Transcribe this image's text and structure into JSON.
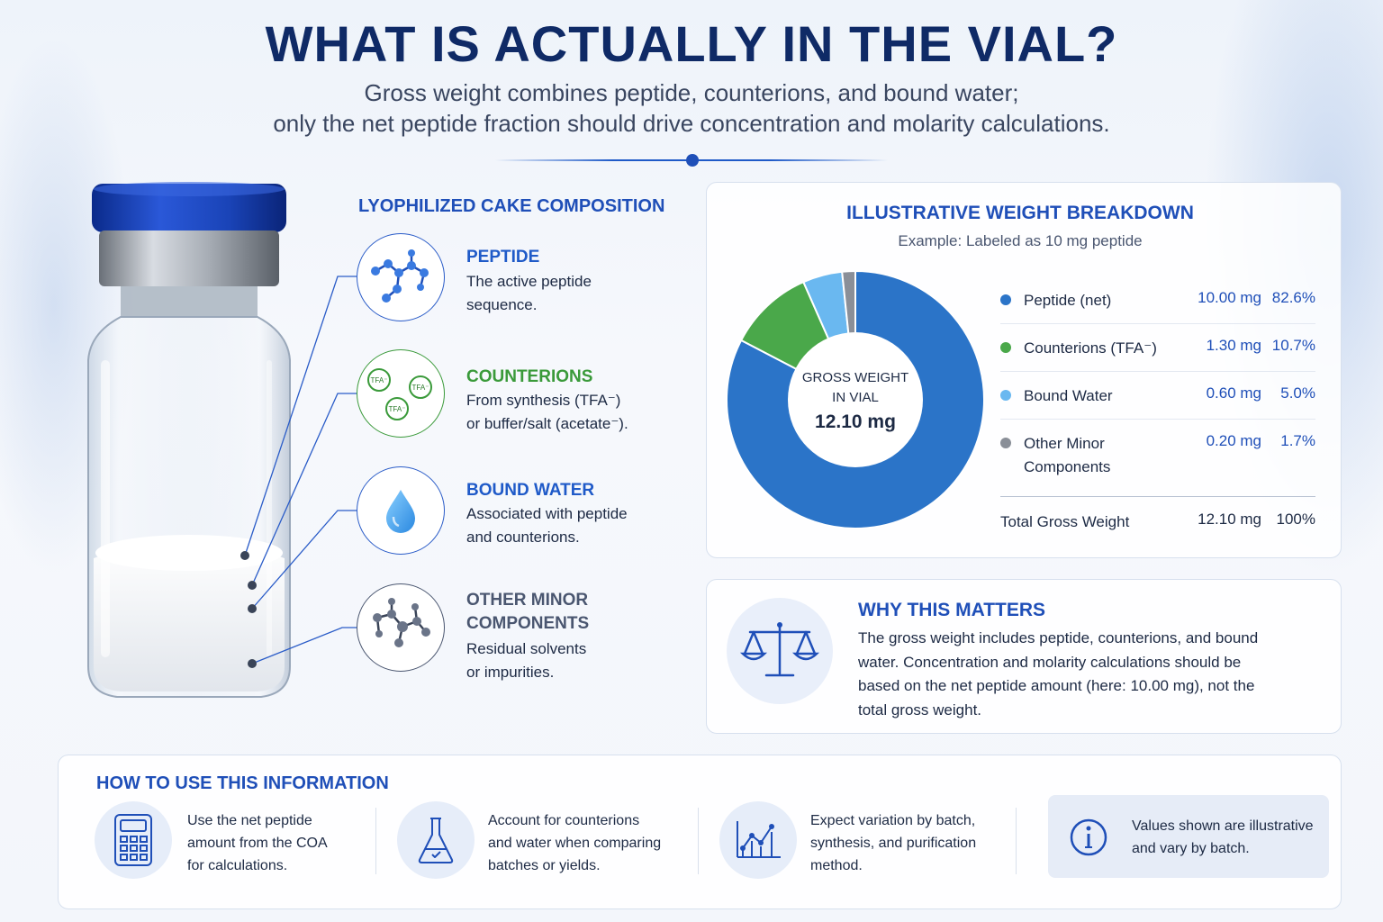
{
  "header": {
    "title": "WHAT IS ACTUALLY IN THE VIAL?",
    "subtitle_line1": "Gross weight combines peptide, counterions, and bound water;",
    "subtitle_line2": "only the net peptide fraction should drive concentration and molarity calculations."
  },
  "composition": {
    "title": "LYOPHILIZED CAKE COMPOSITION",
    "items": [
      {
        "head": "PEPTIDE",
        "line1": "The active peptide",
        "line2": "sequence.",
        "color": "#1f5ac8",
        "icon": "molecule-icon"
      },
      {
        "head": "COUNTERIONS",
        "line1": "From synthesis (TFA⁻)",
        "line2": "or buffer/salt (acetate⁻).",
        "color": "#3a9a3a",
        "icon": "tfa-ions-icon"
      },
      {
        "head": "BOUND WATER",
        "line1": "Associated with peptide",
        "line2": "and counterions.",
        "color": "#1f5ac8",
        "icon": "water-drop-icon"
      },
      {
        "head_line1": "OTHER MINOR",
        "head_line2": "COMPONENTS",
        "line1": "Residual solvents",
        "line2": "or impurities.",
        "color": "#4a5670",
        "icon": "grey-molecule-icon"
      }
    ],
    "tfa_label": "TFA⁻"
  },
  "breakdown": {
    "title": "ILLUSTRATIVE WEIGHT BREAKDOWN",
    "subtitle": "Example: Labeled as 10 mg peptide",
    "center_line1": "GROSS WEIGHT",
    "center_line2": "IN VIAL",
    "center_value": "12.10 mg",
    "rows": [
      {
        "name": "Peptide (net)",
        "mg": "10.00 mg",
        "pct": "82.6%"
      },
      {
        "name": "Counterions (TFA⁻)",
        "mg": "1.30 mg",
        "pct": "10.7%"
      },
      {
        "name": "Bound Water",
        "mg": "0.60 mg",
        "pct": "5.0%"
      },
      {
        "name_line1": "Other Minor",
        "name_line2": "Components",
        "mg": "0.20 mg",
        "pct": "1.7%"
      }
    ],
    "total": {
      "name": "Total Gross Weight",
      "mg": "12.10 mg",
      "pct": "100%"
    },
    "colors": [
      "#2b74c8",
      "#4aa84a",
      "#6ab8f0",
      "#8a8f98"
    ]
  },
  "chart_data": {
    "type": "pie",
    "categories": [
      "Peptide (net)",
      "Counterions (TFA⁻)",
      "Bound Water",
      "Other Minor Components"
    ],
    "values": [
      10.0,
      1.3,
      0.6,
      0.2
    ],
    "percentages": [
      82.6,
      10.7,
      5.0,
      1.7
    ],
    "total": 12.1,
    "title": "ILLUSTRATIVE WEIGHT BREAKDOWN",
    "legend": "right"
  },
  "why": {
    "title": "WHY THIS MATTERS",
    "lines": [
      "The gross weight includes peptide, counterions, and bound",
      "water. Concentration and molarity calculations should be",
      "based on the net peptide amount (here: 10.00 mg), not the",
      "total gross weight."
    ]
  },
  "how": {
    "title": "HOW TO USE THIS INFORMATION",
    "items": [
      {
        "lines": [
          "Use the net peptide",
          "amount from the COA",
          "for calculations."
        ],
        "icon": "calculator-icon"
      },
      {
        "lines": [
          "Account for counterions",
          "and water when comparing",
          "batches or yields."
        ],
        "icon": "flask-icon"
      },
      {
        "lines": [
          "Expect variation by batch,",
          "synthesis, and purification",
          "method."
        ],
        "icon": "trend-chart-icon"
      }
    ],
    "note_lines": [
      "Values shown are illustrative",
      "and vary by batch."
    ],
    "note_icon": "info-icon"
  }
}
